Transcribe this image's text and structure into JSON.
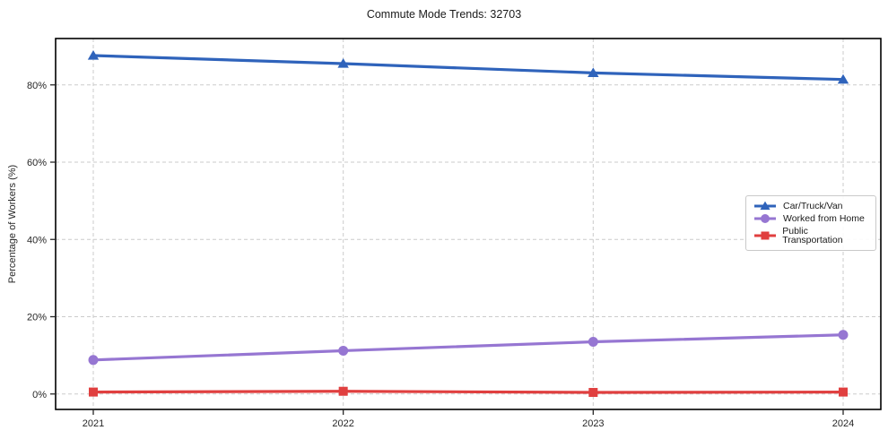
{
  "figure": {
    "title": "Commute Mode Trends: 32703",
    "ylabel": "Percentage of Workers (%)"
  },
  "chart_data": {
    "type": "line",
    "title": "Commute Mode Trends: 32703",
    "xlabel": "",
    "ylabel": "Percentage of Workers (%)",
    "categories": [
      "2021",
      "2022",
      "2023",
      "2024"
    ],
    "series": [
      {
        "name": "Car/Truck/Van",
        "color": "#2f63bb",
        "marker": "triangle",
        "values": [
          87.6,
          85.5,
          83.1,
          81.4
        ]
      },
      {
        "name": "Worked from Home",
        "color": "#9676d2",
        "marker": "circle",
        "values": [
          8.8,
          11.2,
          13.5,
          15.3
        ]
      },
      {
        "name": "Public Transportation",
        "color": "#e03f3f",
        "marker": "square",
        "values": [
          0.5,
          0.7,
          0.4,
          0.5
        ]
      }
    ],
    "yticks": [
      0,
      20,
      40,
      60,
      80
    ],
    "ytick_labels": [
      "0%",
      "20%",
      "40%",
      "60%",
      "80%"
    ],
    "ylim": [
      -4,
      92
    ],
    "grid": true,
    "grid_style": "dashed",
    "legend_position": "center right"
  }
}
